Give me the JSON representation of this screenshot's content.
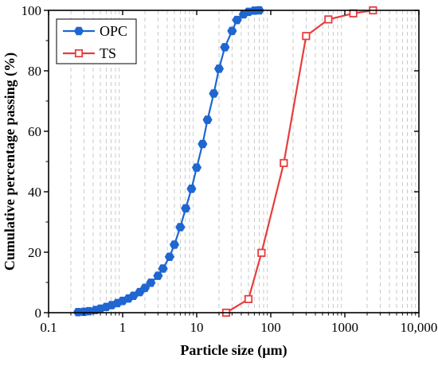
{
  "chart_data": {
    "type": "line",
    "xlabel": "Particle size (µm)",
    "ylabel": "Cumulative percentage passing (%)",
    "xscale": "log",
    "xlim": [
      0.1,
      10000
    ],
    "ylim": [
      0,
      100
    ],
    "x_tick_labels": [
      "0.1",
      "1",
      "10",
      "100",
      "1000",
      "10,000"
    ],
    "x_ticks": [
      0.1,
      1,
      10,
      100,
      1000,
      10000
    ],
    "y_ticks": [
      0,
      20,
      40,
      60,
      80,
      100
    ],
    "x_minor_gridlines": true,
    "legend": {
      "placement": "top-left"
    },
    "series": [
      {
        "name": "OPC",
        "color": "#1f66d1",
        "marker": "hexagon-filled",
        "points": [
          [
            0.25,
            0.2
          ],
          [
            0.3,
            0.3
          ],
          [
            0.35,
            0.5
          ],
          [
            0.43,
            0.9
          ],
          [
            0.5,
            1.3
          ],
          [
            0.6,
            1.9
          ],
          [
            0.71,
            2.5
          ],
          [
            0.85,
            3.2
          ],
          [
            1.0,
            3.9
          ],
          [
            1.2,
            4.7
          ],
          [
            1.4,
            5.6
          ],
          [
            1.7,
            6.8
          ],
          [
            2.0,
            8.2
          ],
          [
            2.4,
            9.9
          ],
          [
            3.0,
            12.2
          ],
          [
            3.5,
            14.6
          ],
          [
            4.3,
            18.5
          ],
          [
            5.0,
            22.5
          ],
          [
            6.0,
            28.3
          ],
          [
            7.1,
            34.5
          ],
          [
            8.5,
            41.0
          ],
          [
            10,
            48.0
          ],
          [
            12,
            55.8
          ],
          [
            14,
            63.8
          ],
          [
            17,
            72.5
          ],
          [
            20,
            80.7
          ],
          [
            24,
            87.8
          ],
          [
            30,
            93.2
          ],
          [
            35,
            96.8
          ],
          [
            43,
            98.7
          ],
          [
            50,
            99.5
          ],
          [
            60,
            99.9
          ],
          [
            70,
            100
          ]
        ]
      },
      {
        "name": "TS",
        "color": "#e83c3c",
        "marker": "square-open",
        "points": [
          [
            25,
            0
          ],
          [
            50,
            4.5
          ],
          [
            75,
            19.8
          ],
          [
            150,
            49.5
          ],
          [
            300,
            91.5
          ],
          [
            600,
            97.0
          ],
          [
            1300,
            99.0
          ],
          [
            2400,
            100
          ]
        ]
      }
    ]
  }
}
